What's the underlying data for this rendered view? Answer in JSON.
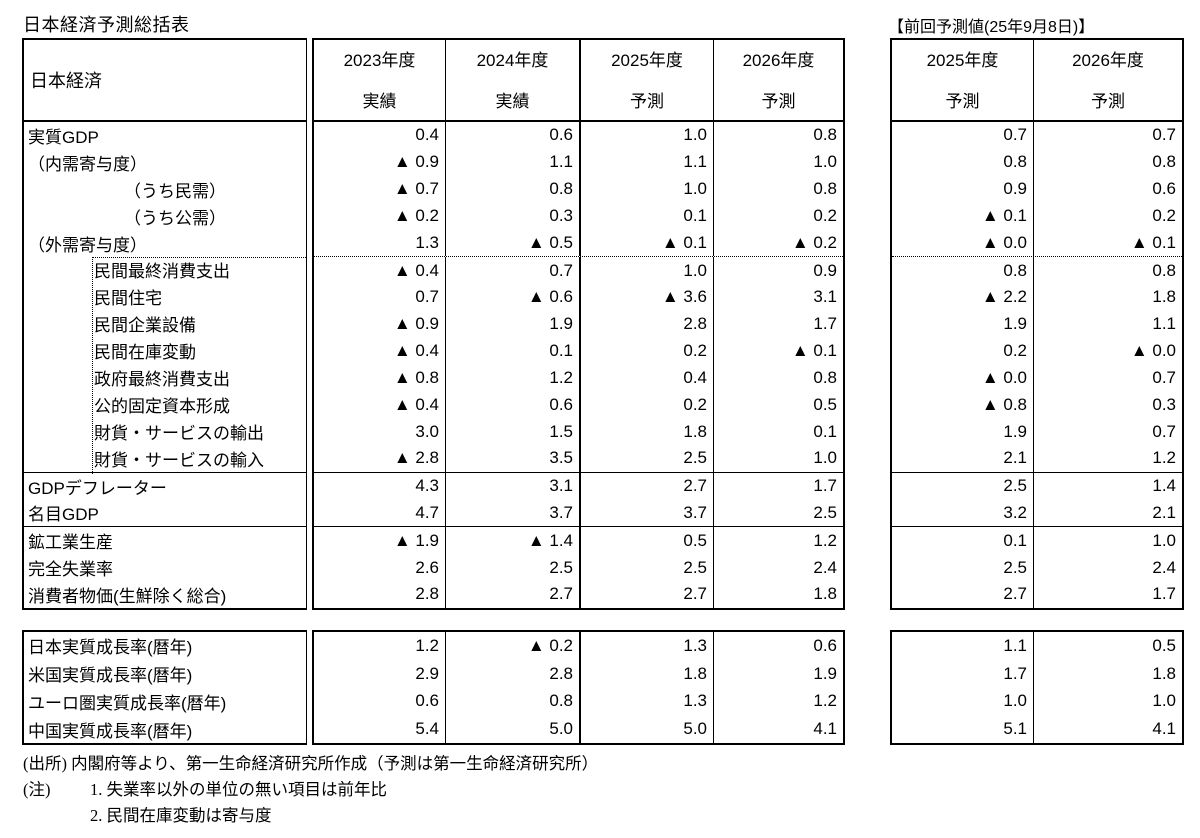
{
  "title": "日本経済予測総括表",
  "prev_title": "【前回予測値(25年9月8日)】",
  "corner_label": "日本経済",
  "colors": {
    "background": "#ffffff",
    "text": "#000000",
    "border": "#000000"
  },
  "negative_marker": "▲",
  "main_columns": [
    {
      "year": "2023年度",
      "kind": "実績"
    },
    {
      "year": "2024年度",
      "kind": "実績"
    },
    {
      "year": "2025年度",
      "kind": "予測"
    },
    {
      "year": "2026年度",
      "kind": "予測"
    }
  ],
  "prev_columns": [
    {
      "year": "2025年度",
      "kind": "予測"
    },
    {
      "year": "2026年度",
      "kind": "予測"
    }
  ],
  "rows": [
    {
      "label": "実質GDP",
      "values": [
        "0.4",
        "0.6",
        "1.0",
        "0.8"
      ],
      "prev": [
        "0.7",
        "0.7"
      ]
    },
    {
      "label": "（内需寄与度）",
      "values": [
        "▲ 0.9",
        "1.1",
        "1.1",
        "1.0"
      ],
      "prev": [
        "0.8",
        "0.8"
      ]
    },
    {
      "label": "（うち民需）",
      "values": [
        "▲ 0.7",
        "0.8",
        "1.0",
        "0.8"
      ],
      "prev": [
        "0.9",
        "0.6"
      ]
    },
    {
      "label": "（うち公需）",
      "values": [
        "▲ 0.2",
        "0.3",
        "0.1",
        "0.2"
      ],
      "prev": [
        "▲ 0.1",
        "0.2"
      ]
    },
    {
      "label": "（外需寄与度）",
      "values": [
        "1.3",
        "▲ 0.5",
        "▲ 0.1",
        "▲ 0.2"
      ],
      "prev": [
        "▲ 0.0",
        "▲ 0.1"
      ]
    },
    {
      "label": "民間最終消費支出",
      "values": [
        "▲ 0.4",
        "0.7",
        "1.0",
        "0.9"
      ],
      "prev": [
        "0.8",
        "0.8"
      ]
    },
    {
      "label": "民間住宅",
      "values": [
        "0.7",
        "▲ 0.6",
        "▲ 3.6",
        "3.1"
      ],
      "prev": [
        "▲ 2.2",
        "1.8"
      ]
    },
    {
      "label": "民間企業設備",
      "values": [
        "▲ 0.9",
        "1.9",
        "2.8",
        "1.7"
      ],
      "prev": [
        "1.9",
        "1.1"
      ]
    },
    {
      "label": "民間在庫変動",
      "values": [
        "▲ 0.4",
        "0.1",
        "0.2",
        "▲ 0.1"
      ],
      "prev": [
        "0.2",
        "▲ 0.0"
      ]
    },
    {
      "label": "政府最終消費支出",
      "values": [
        "▲ 0.8",
        "1.2",
        "0.4",
        "0.8"
      ],
      "prev": [
        "▲ 0.0",
        "0.7"
      ]
    },
    {
      "label": "公的固定資本形成",
      "values": [
        "▲ 0.4",
        "0.6",
        "0.2",
        "0.5"
      ],
      "prev": [
        "▲ 0.8",
        "0.3"
      ]
    },
    {
      "label": "財貨・サービスの輸出",
      "values": [
        "3.0",
        "1.5",
        "1.8",
        "0.1"
      ],
      "prev": [
        "1.9",
        "0.7"
      ]
    },
    {
      "label": "財貨・サービスの輸入",
      "values": [
        "▲ 2.8",
        "3.5",
        "2.5",
        "1.0"
      ],
      "prev": [
        "2.1",
        "1.2"
      ]
    },
    {
      "label": "GDPデフレーター",
      "values": [
        "4.3",
        "3.1",
        "2.7",
        "1.7"
      ],
      "prev": [
        "2.5",
        "1.4"
      ]
    },
    {
      "label": "名目GDP",
      "values": [
        "4.7",
        "3.7",
        "3.7",
        "2.5"
      ],
      "prev": [
        "3.2",
        "2.1"
      ]
    },
    {
      "label": "鉱工業生産",
      "values": [
        "▲ 1.9",
        "▲ 1.4",
        "0.5",
        "1.2"
      ],
      "prev": [
        "0.1",
        "1.0"
      ]
    },
    {
      "label": "完全失業率",
      "values": [
        "2.6",
        "2.5",
        "2.5",
        "2.4"
      ],
      "prev": [
        "2.5",
        "2.4"
      ]
    },
    {
      "label": "消費者物価(生鮮除く総合)",
      "values": [
        "2.8",
        "2.7",
        "2.7",
        "1.8"
      ],
      "prev": [
        "2.7",
        "1.7"
      ]
    }
  ],
  "growth_rows": [
    {
      "label": "日本実質成長率(暦年)",
      "values": [
        "1.2",
        "▲ 0.2",
        "1.3",
        "0.6"
      ],
      "prev": [
        "1.1",
        "0.5"
      ]
    },
    {
      "label": "米国実質成長率(暦年)",
      "values": [
        "2.9",
        "2.8",
        "1.8",
        "1.9"
      ],
      "prev": [
        "1.7",
        "1.8"
      ]
    },
    {
      "label": "ユーロ圏実質成長率(暦年)",
      "values": [
        "0.6",
        "0.8",
        "1.3",
        "1.2"
      ],
      "prev": [
        "1.0",
        "1.0"
      ]
    },
    {
      "label": "中国実質成長率(暦年)",
      "values": [
        "5.4",
        "5.0",
        "5.0",
        "4.1"
      ],
      "prev": [
        "5.1",
        "4.1"
      ]
    }
  ],
  "notes": {
    "source": "(出所) 内閣府等より、第一生命経済研究所作成（予測は第一生命経済研究所）",
    "note_tag": "(注)",
    "note1": "1. 失業率以外の単位の無い項目は前年比",
    "note2": "2. 民間在庫変動は寄与度"
  }
}
